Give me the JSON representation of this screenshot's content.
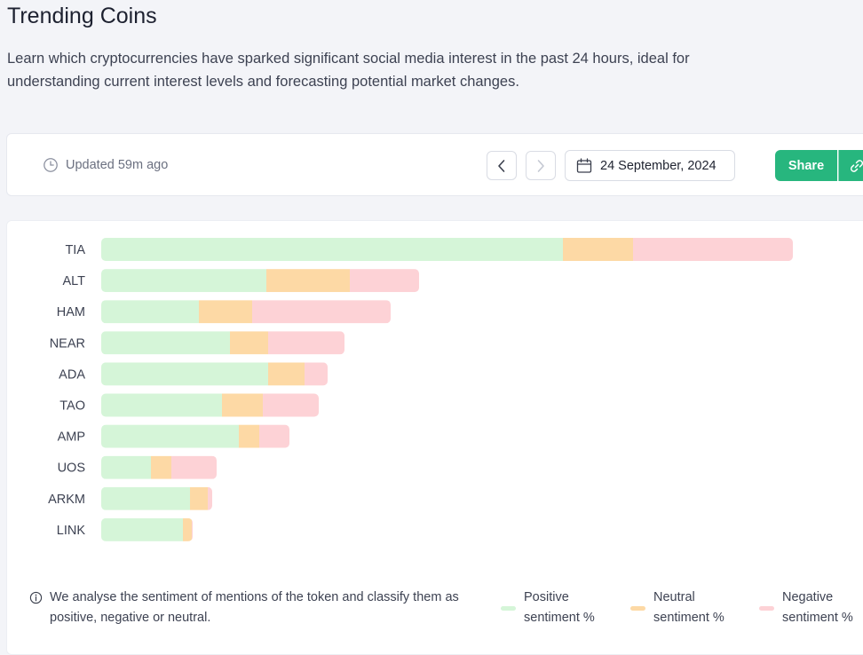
{
  "page": {
    "title": "Trending Coins",
    "description": "Learn which cryptocurrencies have sparked significant social media interest in the past 24 hours, ideal for understanding current interest levels and forecasting potential market changes."
  },
  "toolbar": {
    "updated": "Updated 59m ago",
    "date": "24 September, 2024",
    "share_label": "Share",
    "icons": {
      "updated": "clock-icon",
      "prev": "chevron-left-icon",
      "next": "chevron-right-icon",
      "date": "calendar-icon",
      "link": "link-icon"
    }
  },
  "note": {
    "text": "We analyse the sentiment of mentions of the token and classify them as positive, negative or neutral.",
    "icon": "info-icon"
  },
  "legend": [
    {
      "label": "Positive sentiment %",
      "color": "#d5f5d8"
    },
    {
      "label": "Neutral sentiment %",
      "color": "#fdd9a5"
    },
    {
      "label": "Negative sentiment %",
      "color": "#fdd2d6"
    }
  ],
  "colors": {
    "accent": "#27b67e",
    "positive": "#d5f5d8",
    "neutral": "#fdd9a5",
    "negative": "#fdd2d6"
  },
  "chart_data": {
    "type": "bar",
    "orientation": "horizontal",
    "stacked": true,
    "categories": [
      "TIA",
      "ALT",
      "HAM",
      "NEAR",
      "ADA",
      "TAO",
      "AMP",
      "UOS",
      "ARKM",
      "LINK"
    ],
    "series": [
      {
        "name": "Positive sentiment %",
        "values": [
          520,
          186,
          110,
          145,
          188,
          136,
          155,
          56,
          100,
          92
        ]
      },
      {
        "name": "Neutral sentiment %",
        "values": [
          79,
          94,
          60,
          43,
          41,
          46,
          23,
          23,
          20,
          10
        ]
      },
      {
        "name": "Negative sentiment %",
        "values": [
          180,
          78,
          156,
          86,
          26,
          63,
          34,
          51,
          5,
          1
        ]
      }
    ]
  }
}
